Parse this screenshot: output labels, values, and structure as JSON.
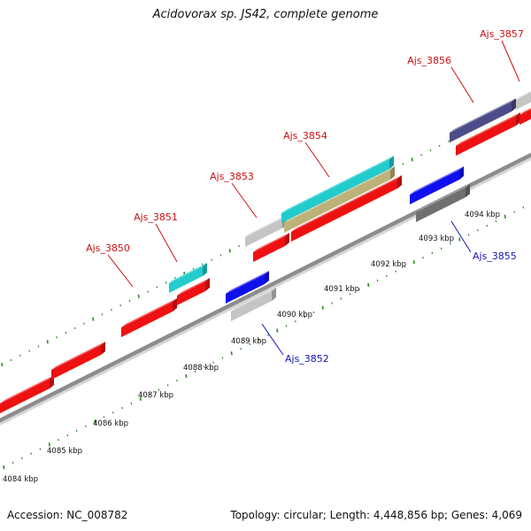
{
  "title": "Acidovorax sp. JS42, complete genome",
  "footer": {
    "accession": "Accession: NC_008782",
    "topology": "Topology: circular; Length: 4,448,856 bp; Genes: 4,069"
  },
  "colors": {
    "backbone": "#8c8c8c",
    "tick": "#2e8b22",
    "forward_label": "#cc1111",
    "reverse_label": "#1515b8",
    "red": "#ee1111",
    "blue": "#1010ee",
    "lightgray": "#c4c4c4",
    "darkgray": "#707070",
    "cyan": "#22cccc",
    "khaki": "#bdb37a",
    "slate": "#4c4c8a"
  },
  "scale_labels": [
    "4084 kbp",
    "4085 kbp",
    "4086 kbp",
    "4087 kbp",
    "4088 kbp",
    "4089 kbp",
    "4090 kbp",
    "4091 kbp",
    "4092 kbp",
    "4093 kbp",
    "4094 kbp"
  ],
  "gene_labels": {
    "forward": [
      "Ajs_3850",
      "Ajs_3851",
      "Ajs_3853",
      "Ajs_3854",
      "Ajs_3856",
      "Ajs_3857"
    ],
    "reverse": [
      "Ajs_3852",
      "Ajs_3855"
    ]
  }
}
